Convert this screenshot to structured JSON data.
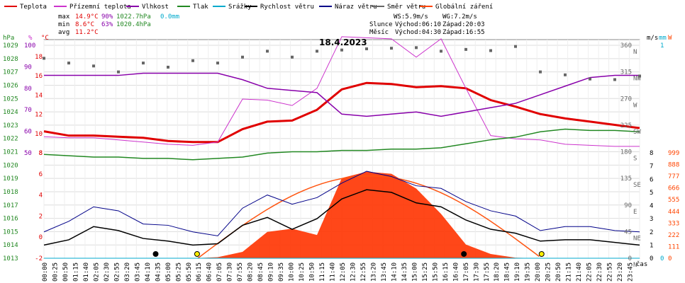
{
  "header": {
    "date_title": "18.4.2023",
    "stats": {
      "max_label": "max",
      "max_temp": "14.9°C",
      "max_hum": "90%",
      "max_press": "1022.7hPa",
      "max_rain": "0.0mm",
      "min_label": "min",
      "min_temp": "8.6°C",
      "min_hum": "63%",
      "min_press": "1020.4hPa",
      "avg_label": "avg",
      "avg_temp": "11.2°C"
    },
    "wind": {
      "ws": "WS:5.9m/s",
      "wg": "WG:7.2m/s"
    },
    "sun": {
      "label": "Slunce",
      "rise": "Východ:06:10",
      "set": "Západ:20:03"
    },
    "moon": {
      "label": "Měsíc",
      "rise": "Východ:04:30",
      "set": "Západ:16:55"
    }
  },
  "legend": [
    {
      "name": "Teplota",
      "color": "#e00000"
    },
    {
      "name": "Přízemní teplota",
      "color": "#cc33cc"
    },
    {
      "name": "Vlhkost",
      "color": "#8800aa"
    },
    {
      "name": "Tlak",
      "color": "#228822"
    },
    {
      "name": "Srážky",
      "color": "#00aacc"
    },
    {
      "name": "Rychlost větru",
      "color": "#000000"
    },
    {
      "name": "Náraz větru",
      "color": "#000088"
    },
    {
      "name": "Směr větru",
      "color": "#666666"
    },
    {
      "name": "Globální záření",
      "color": "#ff4400"
    }
  ],
  "axes": {
    "hpa_title": "hPa",
    "pct_title": "%",
    "c_title": "°C",
    "ms_title": "m/s",
    "mm_title": "mm",
    "w_title": "W",
    "x_title": "čas",
    "hpa_ticks": [
      "1029",
      "1028",
      "1027",
      "1026",
      "1025",
      "1024",
      "1023",
      "1022",
      "1021",
      "1020",
      "1019",
      "1018",
      "1017",
      "1016",
      "1015",
      "1014",
      "1013"
    ],
    "pct_ticks": [
      "100",
      "90",
      "80",
      "70",
      "60",
      "50"
    ],
    "c_upper_ticks": [
      "18",
      "16",
      "14",
      "12",
      "10",
      "8"
    ],
    "c_lower_ticks": [
      "8",
      "6",
      "4",
      "2",
      "0",
      "-2"
    ],
    "deg_ticks": [
      "360",
      "315",
      "270",
      "225",
      "180",
      "135",
      "90",
      "45",
      "0"
    ],
    "dir_ticks": [
      "N",
      "NW",
      "W",
      "SW",
      "S",
      "SE",
      "E",
      "NE",
      "N"
    ],
    "ms_ticks": [
      "8",
      "7",
      "6",
      "5",
      "4",
      "3",
      "2",
      "1",
      "0"
    ],
    "mm_ticks": [
      "1",
      "0"
    ],
    "w_ticks": [
      "999",
      "888",
      "777",
      "666",
      "555",
      "444",
      "333",
      "222",
      "111",
      "0"
    ],
    "time_ticks": [
      "00:00",
      "00:25",
      "00:50",
      "01:15",
      "01:40",
      "02:05",
      "02:30",
      "02:55",
      "03:20",
      "03:45",
      "04:10",
      "04:35",
      "05:00",
      "05:25",
      "05:50",
      "06:15",
      "06:40",
      "07:05",
      "07:30",
      "07:55",
      "08:20",
      "08:45",
      "09:10",
      "09:35",
      "10:00",
      "10:25",
      "10:50",
      "11:15",
      "11:40",
      "12:05",
      "12:30",
      "12:55",
      "13:20",
      "13:45",
      "14:10",
      "14:35",
      "15:00",
      "15:25",
      "15:50",
      "16:15",
      "16:40",
      "17:05",
      "17:30",
      "17:55",
      "18:20",
      "18:45",
      "19:10",
      "19:35",
      "20:00",
      "20:25",
      "20:50",
      "21:15",
      "21:40",
      "22:05",
      "22:30",
      "22:55",
      "23:20",
      "23:45"
    ]
  },
  "chart_data": {
    "type": "line",
    "title": "18.4.2023",
    "x_range": [
      "00:00",
      "24:00"
    ],
    "x_hours": [
      0,
      1,
      2,
      3,
      4,
      5,
      6,
      7,
      8,
      9,
      10,
      11,
      12,
      13,
      14,
      15,
      16,
      17,
      18,
      19,
      20,
      21,
      22,
      23,
      24
    ],
    "series": [
      {
        "name": "Teplota",
        "unit": "°C",
        "values": [
          10.0,
          9.6,
          9.6,
          9.5,
          9.4,
          9.1,
          9.0,
          9.0,
          10.2,
          10.9,
          11.0,
          12.0,
          13.9,
          14.5,
          14.4,
          14.1,
          14.2,
          14.0,
          12.9,
          12.3,
          11.6,
          11.2,
          10.9,
          10.6,
          10.3
        ]
      },
      {
        "name": "Přízemní teplota",
        "unit": "°C",
        "values": [
          9.5,
          9.4,
          9.4,
          9.2,
          9.0,
          8.8,
          8.7,
          9.0,
          13.0,
          12.9,
          12.4,
          14.0,
          18.8,
          18.7,
          18.6,
          16.9,
          18.6,
          14.0,
          9.6,
          9.3,
          9.2,
          8.8,
          8.7,
          8.6,
          8.6
        ]
      },
      {
        "name": "Vlhkost",
        "unit": "%",
        "values": [
          86,
          86,
          86,
          86,
          87,
          87,
          87,
          87,
          84,
          80,
          79,
          78,
          68,
          67,
          68,
          69,
          67,
          69,
          71,
          73,
          77,
          81,
          85,
          86,
          86
        ]
      },
      {
        "name": "Tlak",
        "unit": "hPa",
        "values": [
          1020.8,
          1020.7,
          1020.6,
          1020.6,
          1020.5,
          1020.5,
          1020.4,
          1020.5,
          1020.6,
          1020.9,
          1021.0,
          1021.0,
          1021.1,
          1021.1,
          1021.2,
          1021.2,
          1021.3,
          1021.6,
          1021.9,
          1022.1,
          1022.5,
          1022.7,
          1022.6,
          1022.6,
          1022.5
        ]
      },
      {
        "name": "Srážky",
        "unit": "mm",
        "values": [
          0,
          0,
          0,
          0,
          0,
          0,
          0,
          0,
          0,
          0,
          0,
          0,
          0,
          0,
          0,
          0,
          0,
          0,
          0,
          0,
          0,
          0,
          0,
          0,
          0
        ]
      },
      {
        "name": "Rychlost větru",
        "unit": "m/s",
        "values": [
          1.0,
          1.4,
          2.4,
          2.1,
          1.5,
          1.3,
          1.0,
          1.1,
          2.5,
          3.1,
          2.2,
          3.0,
          4.5,
          5.2,
          5.0,
          4.2,
          3.9,
          2.9,
          2.2,
          1.9,
          1.3,
          1.4,
          1.4,
          1.2,
          1.0
        ]
      },
      {
        "name": "Náraz větru",
        "unit": "m/s",
        "values": [
          2.0,
          2.8,
          3.9,
          3.6,
          2.6,
          2.5,
          2.0,
          1.7,
          3.8,
          4.8,
          4.1,
          4.6,
          5.7,
          6.6,
          6.2,
          5.5,
          5.3,
          4.3,
          3.6,
          3.2,
          2.1,
          2.4,
          2.4,
          2.1,
          2.0
        ]
      },
      {
        "name": "Směr větru",
        "unit": "°",
        "values": [
          338,
          330,
          325,
          315,
          330,
          323,
          334,
          330,
          340,
          350,
          340,
          350,
          352,
          354,
          355,
          356,
          350,
          353,
          351,
          358,
          315,
          310,
          303,
          302,
          308
        ]
      },
      {
        "name": "Globální záření",
        "unit": "W/m²",
        "values": [
          0,
          0,
          0,
          0,
          0,
          0,
          0,
          10,
          60,
          250,
          280,
          220,
          760,
          820,
          800,
          660,
          420,
          130,
          40,
          5,
          0,
          0,
          0,
          0,
          0
        ]
      }
    ],
    "y_ranges": {
      "pressure_hpa": [
        1013,
        1029
      ],
      "humidity_pct": [
        50,
        100
      ],
      "temp_upper_c": [
        8,
        18
      ],
      "temp_lower_c": [
        -2,
        8
      ],
      "wind_ms": [
        0,
        8
      ],
      "wind_dir_deg": [
        0,
        360
      ],
      "rain_mm": [
        0,
        1
      ],
      "radiation_w": [
        0,
        999
      ]
    },
    "grid": true
  }
}
